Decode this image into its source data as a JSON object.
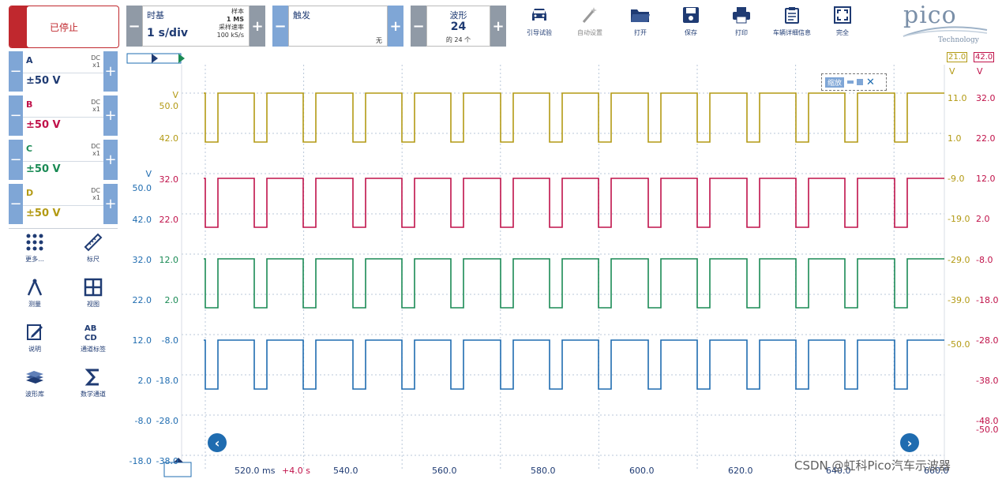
{
  "toolbar": {
    "stop_label": "已停止",
    "timebase": {
      "title": "时基",
      "value": "1 s/div",
      "samples_label": "样本",
      "samples_value": "1 MS",
      "rate_label": "采样速率",
      "rate_value": "100 kS/s"
    },
    "trigger": {
      "title": "触发",
      "mode": "无"
    },
    "waveforms": {
      "title": "波形",
      "count": "24",
      "of_label": "的 24 个"
    },
    "buttons": [
      {
        "label": "引导试验",
        "icon": "car-icon"
      },
      {
        "label": "自动设置",
        "icon": "magic-wand-icon"
      },
      {
        "label": "打开",
        "icon": "folder-icon"
      },
      {
        "label": "保存",
        "icon": "save-icon"
      },
      {
        "label": "打印",
        "icon": "printer-icon"
      },
      {
        "label": "车辆详细信息",
        "icon": "clipboard-icon"
      },
      {
        "label": "完全",
        "icon": "fullscreen-icon"
      }
    ],
    "logo": {
      "name": "pico",
      "sub": "Technology"
    }
  },
  "channels": [
    {
      "letter": "A",
      "coupling": "DC",
      "probe": "x1",
      "range": "±50 V",
      "color": "#1f3b73"
    },
    {
      "letter": "B",
      "coupling": "DC",
      "probe": "x1",
      "range": "±50 V",
      "color": "#c0124a"
    },
    {
      "letter": "C",
      "coupling": "DC",
      "probe": "x1",
      "range": "±50 V",
      "color": "#1a8a55"
    },
    {
      "letter": "D",
      "coupling": "DC",
      "probe": "x1",
      "range": "±50 V",
      "color": "#b39a14"
    }
  ],
  "tools": [
    {
      "label": "更多...",
      "icon": "grid-dots-icon"
    },
    {
      "label": "标尺",
      "icon": "ruler-icon"
    },
    {
      "label": "测量",
      "icon": "compass-icon"
    },
    {
      "label": "视图",
      "icon": "view-grid-icon"
    },
    {
      "label": "说明",
      "icon": "notes-icon"
    },
    {
      "label": "通道标签",
      "icon": "abcd-icon"
    },
    {
      "label": "波形库",
      "icon": "waveform-library-icon"
    },
    {
      "label": "数学通道",
      "icon": "sigma-icon"
    }
  ],
  "scope": {
    "unit_v": "V",
    "left_axis_1": [
      "50.0",
      "42.0"
    ],
    "left_axis_2": [
      "V",
      "50.0",
      "42.0",
      "32.0",
      "22.0",
      "12.0",
      "2.0",
      "-8.0",
      "-18.0"
    ],
    "left_axis_3": [
      "32.0",
      "22.0",
      "12.0",
      "2.0",
      "-8.0",
      "-18.0",
      "-28.0",
      "-38.0"
    ],
    "right_axis_1": [
      "21.0",
      "11.0",
      "1.0",
      "-9.0",
      "-19.0",
      "-29.0",
      "-39.0",
      "-48.0",
      "-50.0"
    ],
    "right_axis_2": [
      "42.0",
      "32.0",
      "22.0",
      "12.0",
      "2.0",
      "-8.0",
      "-18.0",
      "-28.0",
      "-38.0",
      "-50.0"
    ],
    "x_ticks": [
      "520.0 ms",
      "540.0",
      "560.0",
      "580.0",
      "600.0",
      "620.0",
      "640.0",
      "660.0"
    ],
    "x_offset": "+4.0 s",
    "zoom_label": "缩放",
    "colors": {
      "yellow": "#b39a14",
      "red": "#c0124a",
      "green": "#1a8a55",
      "blue": "#1f6cb0"
    }
  },
  "watermark": "CSDN @虹科Pico汽车示波器"
}
